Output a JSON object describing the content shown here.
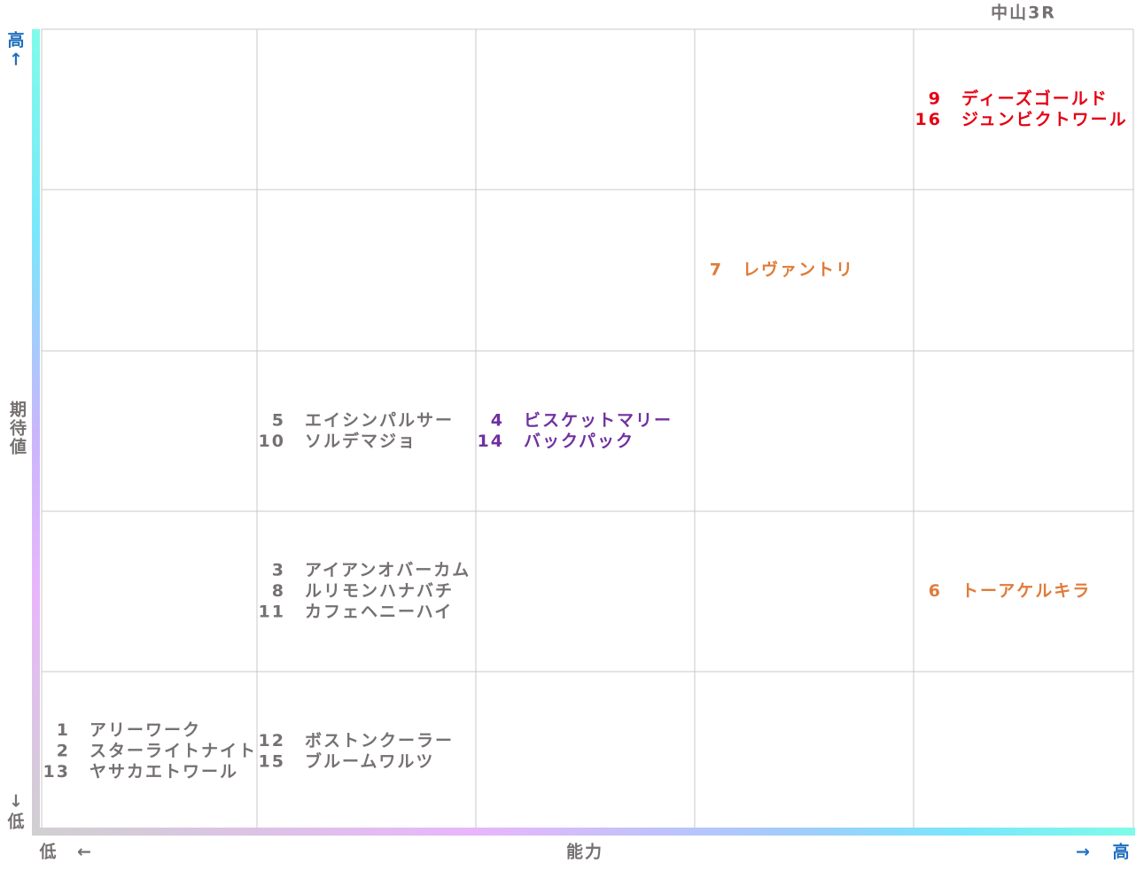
{
  "title": "中山3R",
  "y_axis": {
    "label": "期待値",
    "high": "高",
    "high_arrow": "↑",
    "low_arrow": "↓",
    "low": "低"
  },
  "x_axis": {
    "label": "能力",
    "low": "低",
    "low_arrow": "←",
    "high_arrow": "→",
    "high": "高"
  },
  "grid": {
    "rows": [
      [
        [],
        [],
        [],
        [],
        [
          {
            "no": "9",
            "name": "ディーズゴールド",
            "color": "#e60012"
          },
          {
            "no": "16",
            "name": "ジュンビクトワール",
            "color": "#e60012"
          }
        ]
      ],
      [
        [],
        [],
        [],
        [
          {
            "no": "7",
            "name": "レヴァントリ",
            "color": "#e07b39"
          }
        ],
        []
      ],
      [
        [],
        [
          {
            "no": "5",
            "name": "エイシンパルサー",
            "color": "#767171"
          },
          {
            "no": "10",
            "name": "ソルデマジョ",
            "color": "#767171"
          }
        ],
        [
          {
            "no": "4",
            "name": "ビスケットマリー",
            "color": "#7030a0"
          },
          {
            "no": "14",
            "name": "バックパック",
            "color": "#7030a0"
          }
        ],
        [],
        []
      ],
      [
        [],
        [
          {
            "no": "3",
            "name": "アイアンオバーカム",
            "color": "#767171"
          },
          {
            "no": "8",
            "name": "ルリモンハナバチ",
            "color": "#767171"
          },
          {
            "no": "11",
            "name": "カフェヘニーハイ",
            "color": "#767171"
          }
        ],
        [],
        [],
        [
          {
            "no": "6",
            "name": "トーアケルキラ",
            "color": "#e07b39"
          }
        ]
      ],
      [
        [
          {
            "no": "1",
            "name": "アリーワーク",
            "color": "#767171"
          },
          {
            "no": "2",
            "name": "スターライトナイト",
            "color": "#767171"
          },
          {
            "no": "13",
            "name": "ヤサカエトワール",
            "color": "#767171"
          }
        ],
        [
          {
            "no": "12",
            "name": "ボストンクーラー",
            "color": "#767171"
          },
          {
            "no": "15",
            "name": "ブルームワルツ",
            "color": "#767171"
          }
        ],
        [],
        [],
        []
      ]
    ]
  }
}
